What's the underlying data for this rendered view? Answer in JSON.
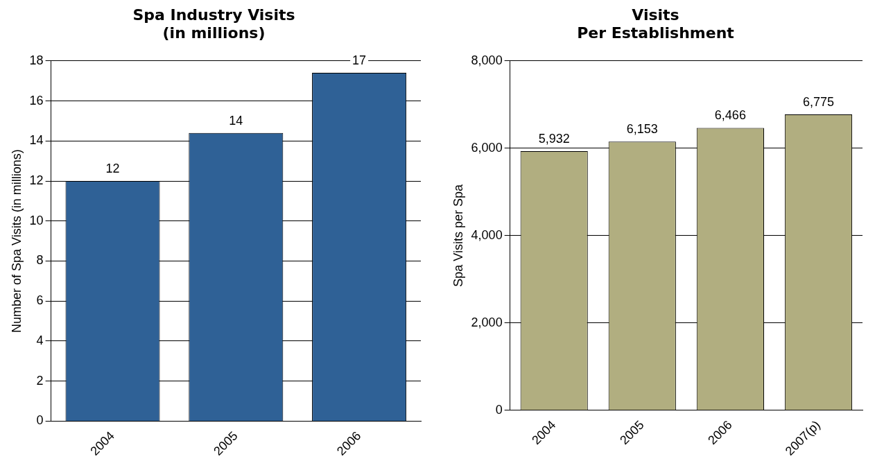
{
  "chart_data": [
    {
      "type": "bar",
      "title": "Spa Industry Visits\n(in millions)",
      "ylabel": "Number of Spa Visits (in millions)",
      "categories": [
        "2004",
        "2005",
        "2006"
      ],
      "series": [
        {
          "color": "#2f6196",
          "values": [
            12.0,
            14.4,
            17.4
          ],
          "value_labels": [
            "12",
            "14",
            "17"
          ]
        }
      ],
      "ylim": [
        0,
        18
      ],
      "yticks": [
        0,
        2,
        4,
        6,
        8,
        10,
        12,
        14,
        16,
        18
      ],
      "grid": "y",
      "legend": false
    },
    {
      "type": "bar",
      "title": "Visits\nPer Establishment",
      "ylabel": "Spa Visits per Spa",
      "categories": [
        "2004",
        "2005",
        "2006",
        "2007(p)"
      ],
      "series": [
        {
          "color": "#b1ae80",
          "values": [
            5932,
            6153,
            6466,
            6775
          ],
          "value_labels": [
            "5,932",
            "6,153",
            "6,466",
            "6,775"
          ]
        }
      ],
      "ylim": [
        0,
        8000
      ],
      "yticks": [
        0,
        {
          "value": 2000,
          "label": "2,000"
        },
        {
          "value": 4000,
          "label": "4,000"
        },
        {
          "value": 6000,
          "label": "6,000"
        },
        {
          "value": 8000,
          "label": "8,000"
        }
      ],
      "grid": "y",
      "legend": false
    }
  ]
}
